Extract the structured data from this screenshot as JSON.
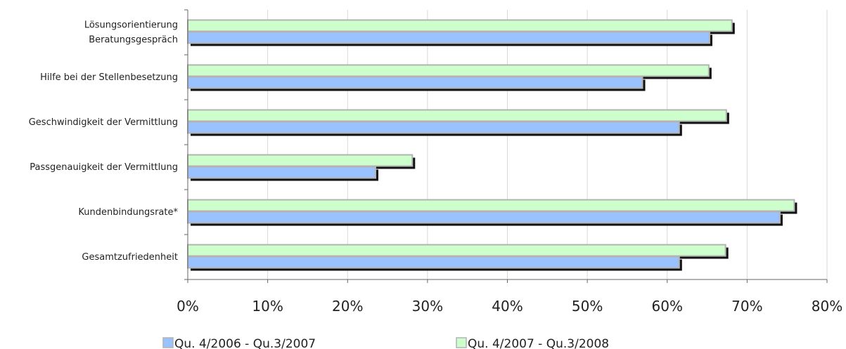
{
  "chart_data": {
    "type": "bar",
    "orientation": "horizontal",
    "categories": [
      [
        "Lösungsorientierung",
        "Beratungsgespräch"
      ],
      [
        "Hilfe bei der Stellenbesetzung"
      ],
      [
        "Geschwindigkeit der Vermittlung"
      ],
      [
        "Passgenauigkeit der Vermittlung"
      ],
      [
        "Kundenbindungsrate*"
      ],
      [
        "Gesamtzufriedenheit"
      ]
    ],
    "series": [
      {
        "name": "Qu. 4/2006 - Qu.3/2007",
        "color": "#99C2FF",
        "values": [
          65.3,
          56.9,
          61.5,
          23.5,
          74.1,
          61.5
        ]
      },
      {
        "name": "Qu. 4/2007 - Qu.3/2008",
        "color": "#CCFFCC",
        "values": [
          68.1,
          65.2,
          67.4,
          28.1,
          75.9,
          67.3
        ]
      }
    ],
    "xlim": [
      0,
      80
    ],
    "xticks": [
      "0%",
      "10%",
      "20%",
      "30%",
      "40%",
      "50%",
      "60%",
      "70%",
      "80%"
    ],
    "xtick_values": [
      0,
      10,
      20,
      30,
      40,
      50,
      60,
      70,
      80
    ],
    "grid": true,
    "legend_position": "bottom"
  }
}
